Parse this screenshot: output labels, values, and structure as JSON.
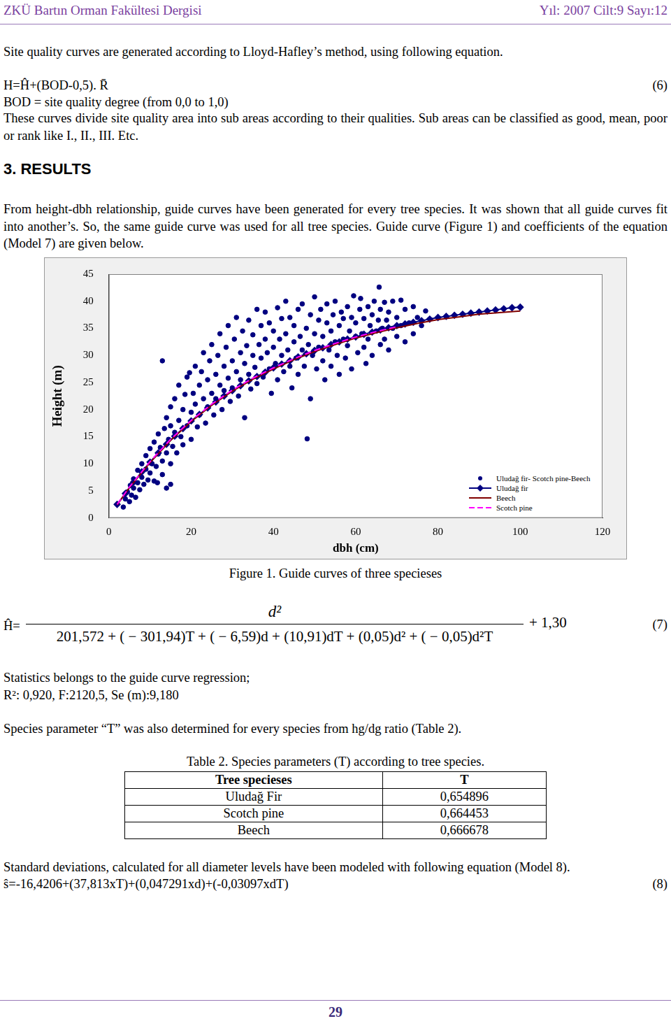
{
  "header": {
    "journal": "ZKÜ Bartın Orman Fakültesi Dergisi",
    "issue": "Yıl: 2007 Cilt:9 Sayı:12"
  },
  "intro": {
    "paragraph": "Site quality curves are generated according to Lloyd-Hafley’s method, using following equation.",
    "equation": "H=Ĥ+(BOD-0,5). R̄",
    "equation_number": "(6)",
    "definition": "BOD = site quality degree (from 0,0 to 1,0)",
    "paragraph2": "These curves divide site quality area into sub areas according to their qualities. Sub areas can be classified as good, mean, poor or rank like I., II., III. Etc."
  },
  "section": {
    "title": "3. RESULTS",
    "paragraph": "From height-dbh relationship, guide curves have been generated for every tree species. It was shown that all guide curves fit into another’s. So, the same guide curve was used for all tree species. Guide curve (Figure 1) and coefficients of the equation (Model 7) are given below."
  },
  "figure": {
    "caption": "Figure 1. Guide curves of three specieses"
  },
  "chart_data": {
    "type": "scatter",
    "x_label": "dbh (cm)",
    "y_label": "Height (m)",
    "xlim": [
      0,
      120
    ],
    "xticks": [
      0,
      20,
      40,
      60,
      80,
      100,
      120
    ],
    "ylim": [
      0,
      45
    ],
    "yticks": [
      0,
      5,
      10,
      15,
      20,
      25,
      30,
      35,
      40,
      45
    ],
    "grid": false,
    "legend": "bottom-right",
    "series": [
      {
        "name": "Uludağ fir- Scotch pine-Beech",
        "type": "scatter",
        "color": "#000080",
        "marker": "circle",
        "x": [
          3.5,
          4,
          4.5,
          5,
          5.2,
          5.5,
          6,
          6,
          6.5,
          7,
          7,
          7.5,
          8,
          8,
          8.5,
          9,
          9,
          9.5,
          10,
          10,
          10.5,
          11,
          11,
          11.5,
          11.8,
          12,
          12,
          12.5,
          13,
          13,
          13,
          13.5,
          14,
          14,
          14,
          14.5,
          15,
          15,
          15,
          15,
          15.5,
          16,
          16,
          16.5,
          17,
          17,
          17.5,
          18,
          18,
          18.5,
          19,
          19,
          19.6,
          20,
          20,
          20.5,
          21,
          21,
          21.5,
          22,
          22,
          22.5,
          23,
          23,
          23.5,
          24,
          24,
          24.5,
          25,
          25,
          25.5,
          26,
          26,
          26.5,
          27,
          27,
          27.5,
          28,
          28,
          28.5,
          29,
          29,
          29.5,
          30,
          30,
          30.5,
          31,
          31,
          31.5,
          32,
          32,
          32.5,
          33,
          33,
          33.5,
          34,
          34,
          34.5,
          35,
          35,
          35.5,
          36,
          36,
          36.5,
          37,
          37,
          37.5,
          38,
          38,
          38.5,
          39,
          39,
          39.5,
          40,
          40,
          40.5,
          41,
          41,
          41.5,
          42,
          42,
          42.5,
          43,
          43,
          43.5,
          44,
          44,
          44.5,
          45,
          45,
          45.5,
          46,
          46,
          46.5,
          47,
          47,
          47.5,
          48,
          48.2,
          48.5,
          49,
          49,
          49.5,
          50,
          50,
          50.5,
          51,
          51,
          51.5,
          52,
          52,
          52.5,
          53,
          53,
          53.5,
          54,
          54,
          54.5,
          55,
          55,
          55.5,
          56,
          56,
          56.5,
          57,
          57,
          57.5,
          58,
          58,
          58.5,
          59,
          59,
          59.5,
          60,
          60,
          60.5,
          61,
          61.2,
          61.5,
          62,
          62,
          62.5,
          63,
          63,
          63.5,
          64,
          64,
          64.5,
          65,
          65.7,
          65.5,
          66,
          66,
          66.5,
          67,
          67,
          67.5,
          68,
          68,
          69,
          69,
          70,
          70,
          71,
          71,
          72,
          72,
          73,
          74,
          74,
          75,
          76,
          77
        ],
        "values": [
          2,
          3.5,
          4.8,
          3,
          6,
          4.2,
          5.5,
          7.2,
          3.8,
          6.5,
          8.8,
          5.2,
          7.5,
          10,
          6.2,
          9,
          11.5,
          7,
          8.3,
          12.8,
          10,
          6.8,
          14,
          9.5,
          6.5,
          11.8,
          15.5,
          13,
          10.5,
          29,
          8,
          16.5,
          12,
          18.5,
          5.5,
          14.5,
          10,
          17,
          20.5,
          6.2,
          13.2,
          15.8,
          22,
          12,
          18,
          24.5,
          15,
          20,
          13.5,
          22.8,
          17,
          26,
          26.8,
          19.5,
          14.5,
          23,
          21,
          28,
          16.8,
          24.5,
          19,
          27,
          22,
          30.5,
          17.5,
          25.5,
          20.5,
          29,
          23,
          32,
          19,
          26.5,
          22,
          30,
          24.5,
          34,
          20,
          28,
          23.5,
          31.5,
          25.8,
          35.5,
          21.5,
          29,
          24,
          33,
          27,
          37,
          22.5,
          30.5,
          25.5,
          34.5,
          18.5,
          28.5,
          31.8,
          26.5,
          36.5,
          23.8,
          30,
          33.8,
          27.8,
          38.5,
          24.8,
          32,
          29.5,
          35.5,
          26,
          33,
          38,
          30.5,
          27.5,
          36,
          23,
          31.5,
          34.5,
          28.5,
          38.8,
          25.5,
          33,
          30,
          36.8,
          27,
          34,
          40,
          31,
          28,
          37,
          24,
          32.5,
          35.5,
          29.5,
          38.5,
          26.5,
          33.5,
          31,
          39.5,
          28,
          35,
          14.6,
          32,
          37.5,
          22,
          30,
          34,
          40.8,
          27.5,
          36.5,
          31.5,
          38.5,
          29,
          33.5,
          25.5,
          36,
          39.5,
          31,
          34.5,
          28,
          37.5,
          32.5,
          40,
          30,
          35.5,
          26.5,
          38,
          33,
          36.8,
          29.5,
          39,
          31.8,
          34.5,
          37,
          27.5,
          41,
          33.5,
          36,
          30.5,
          38.5,
          40.5,
          34,
          31.5,
          36.8,
          28.5,
          39,
          33,
          35.5,
          37.5,
          30,
          40,
          34.5,
          42.6,
          36.5,
          32,
          38.5,
          35,
          33,
          39.8,
          36.5,
          31,
          38,
          35,
          40,
          33.5,
          37,
          40.2,
          35.5,
          38.5,
          32.5,
          36,
          39,
          34,
          37,
          35.5,
          38.2
        ]
      },
      {
        "name": "Uludağ fir",
        "type": "line",
        "color": "#000080",
        "marker": "diamond",
        "line_style": "solid",
        "x": [
          2,
          4,
          6,
          8,
          10,
          12,
          14,
          16,
          18,
          20,
          22,
          24,
          26,
          28,
          30,
          32,
          34,
          36,
          38,
          40,
          42,
          44,
          46,
          48,
          50,
          52,
          54,
          56,
          58,
          60,
          62,
          64,
          66,
          68,
          70,
          72,
          74,
          76,
          78,
          80,
          82,
          84,
          86,
          88,
          90,
          92,
          94,
          96,
          98,
          100
        ],
        "values": [
          2.5,
          4.5,
          6.6,
          8.5,
          10.3,
          12,
          13.6,
          15.1,
          16.5,
          17.9,
          19.1,
          20.3,
          21.4,
          22.5,
          23.5,
          24.4,
          25.3,
          26.1,
          26.9,
          27.7,
          28.4,
          29,
          29.7,
          30.3,
          30.9,
          31.4,
          32,
          32.5,
          33,
          33.4,
          33.9,
          34.3,
          34.7,
          35.1,
          35.5,
          35.8,
          36.1,
          36.4,
          36.7,
          37,
          37.2,
          37.4,
          37.6,
          37.8,
          38,
          38.2,
          38.4,
          38.6,
          38.8,
          38.9
        ]
      },
      {
        "name": "Beech",
        "type": "line",
        "color": "#800000",
        "marker": "none",
        "line_style": "solid",
        "x": [
          2,
          5,
          10,
          15,
          20,
          25,
          30,
          35,
          40,
          45,
          50,
          55,
          60,
          65,
          70,
          75,
          80,
          85,
          90,
          95,
          100
        ],
        "values": [
          2.4,
          5.6,
          10.2,
          14.3,
          17.8,
          20.8,
          23.4,
          25.6,
          27.5,
          29.2,
          30.7,
          32,
          33.2,
          34.2,
          35.1,
          35.9,
          36.6,
          37.1,
          37.6,
          37.9,
          38.2
        ]
      },
      {
        "name": "Scotch pine",
        "type": "line",
        "color": "#ff00ff",
        "marker": "none",
        "line_style": "dashed",
        "x": [
          2,
          5,
          10,
          15,
          20,
          25,
          30,
          35,
          40,
          45,
          50,
          55,
          60,
          65,
          70
        ],
        "values": [
          2.5,
          5.7,
          10.4,
          14.5,
          18,
          21,
          23.6,
          25.8,
          27.7,
          29.4,
          30.9,
          32.2,
          33.4,
          34.4,
          35.3
        ]
      }
    ]
  },
  "model7": {
    "lhs": "Ĥ=",
    "numerator": "d²",
    "denominator": "201,572 + ( − 301,94)T + ( − 6,59)d + (10,91)dT + (0,05)d² + ( − 0,05)d²T",
    "tail": "+ 1,30",
    "number": "(7)"
  },
  "statistics": {
    "intro": "Statistics belongs to the guide curve regression;",
    "values": "R²: 0,920, F:2120,5, Se (m):9,180"
  },
  "species_text": "Species parameter “T” was also determined for every species from hg/dg ratio (Table 2).",
  "table": {
    "caption": "Table 2. Species parameters (T) according to tree species.",
    "header": [
      "Tree specieses",
      "T"
    ],
    "rows": [
      [
        "Uludağ Fir",
        "0,654896"
      ],
      [
        "Scotch pine",
        "0,664453"
      ],
      [
        "Beech",
        "0,666678"
      ]
    ]
  },
  "model8": {
    "text": "Standard deviations, calculated for all diameter levels have been modeled with following equation (Model 8).",
    "equation": "ŝ=-16,4206+(37,813xT)+(0,047291xd)+(-0,03097xdT)",
    "number": "(8)"
  },
  "footer": {
    "page": "29"
  }
}
